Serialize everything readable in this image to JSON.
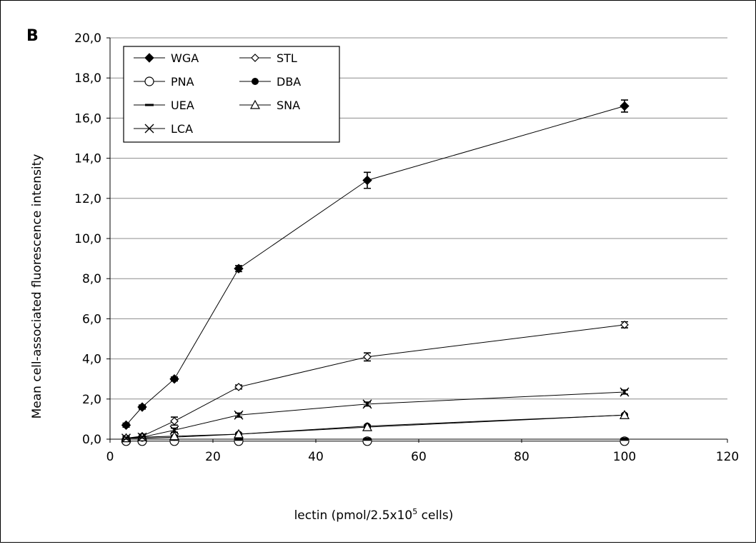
{
  "panel_label": "B",
  "chart_data": {
    "type": "line",
    "xlabel": "lectin (pmol/2.5x10",
    "xlabel_sup": "5",
    "xlabel_suffix": " cells)",
    "ylabel": "Mean cell-associated fluorescence intensity",
    "xlim": [
      0,
      120
    ],
    "ylim": [
      0,
      20
    ],
    "xticks": [
      0,
      20,
      40,
      60,
      80,
      100,
      120
    ],
    "yticks": [
      "0,0",
      "2,0",
      "4,0",
      "6,0",
      "8,0",
      "10,0",
      "12,0",
      "14,0",
      "16,0",
      "18,0",
      "20,0"
    ],
    "grid": "horizontal",
    "legend_position": "top-left",
    "series": [
      {
        "name": "WGA",
        "marker": "filled-diamond",
        "x": [
          3.125,
          6.25,
          12.5,
          25,
          50,
          100
        ],
        "y": [
          0.7,
          1.6,
          3.0,
          8.5,
          12.9,
          16.6
        ],
        "err": [
          0.1,
          0.1,
          0.1,
          0.15,
          0.4,
          0.3
        ]
      },
      {
        "name": "STL",
        "marker": "open-diamond",
        "x": [
          3.125,
          6.25,
          12.5,
          25,
          50,
          100
        ],
        "y": [
          0.05,
          0.15,
          0.9,
          2.6,
          4.1,
          5.7
        ],
        "err": [
          0.1,
          0.1,
          0.2,
          0.1,
          0.2,
          0.15
        ]
      },
      {
        "name": "PNA",
        "marker": "open-circle",
        "x": [
          3.125,
          6.25,
          12.5,
          25,
          50,
          100
        ],
        "y": [
          -0.1,
          -0.1,
          -0.1,
          -0.1,
          -0.1,
          -0.1
        ],
        "err": [
          0.1,
          0.1,
          0.1,
          0.1,
          0.1,
          0.1
        ]
      },
      {
        "name": "DBA",
        "marker": "filled-circle",
        "x": [
          3.125,
          6.25,
          12.5,
          25,
          50,
          100
        ],
        "y": [
          0.05,
          0.05,
          0.1,
          0.25,
          0.65,
          1.2
        ],
        "err": [
          0.05,
          0.05,
          0.05,
          0.05,
          0.05,
          0.05
        ]
      },
      {
        "name": "UEA",
        "marker": "dash",
        "x": [
          3.125,
          6.25,
          12.5,
          25,
          50,
          100
        ],
        "y": [
          0.0,
          0.0,
          0.0,
          0.0,
          0.0,
          0.0
        ],
        "err": [
          0.05,
          0.05,
          0.05,
          0.05,
          0.05,
          0.05
        ]
      },
      {
        "name": "SNA",
        "marker": "open-triangle",
        "x": [
          3.125,
          6.25,
          12.5,
          25,
          50,
          100
        ],
        "y": [
          0.05,
          0.1,
          0.15,
          0.25,
          0.6,
          1.2
        ],
        "err": [
          0.05,
          0.05,
          0.05,
          0.05,
          0.05,
          0.05
        ]
      },
      {
        "name": "LCA",
        "marker": "x",
        "x": [
          3.125,
          6.25,
          12.5,
          25,
          50,
          100
        ],
        "y": [
          0.05,
          0.1,
          0.45,
          1.2,
          1.75,
          2.35
        ],
        "err": [
          0.05,
          0.05,
          0.1,
          0.1,
          0.1,
          0.1
        ]
      }
    ]
  }
}
